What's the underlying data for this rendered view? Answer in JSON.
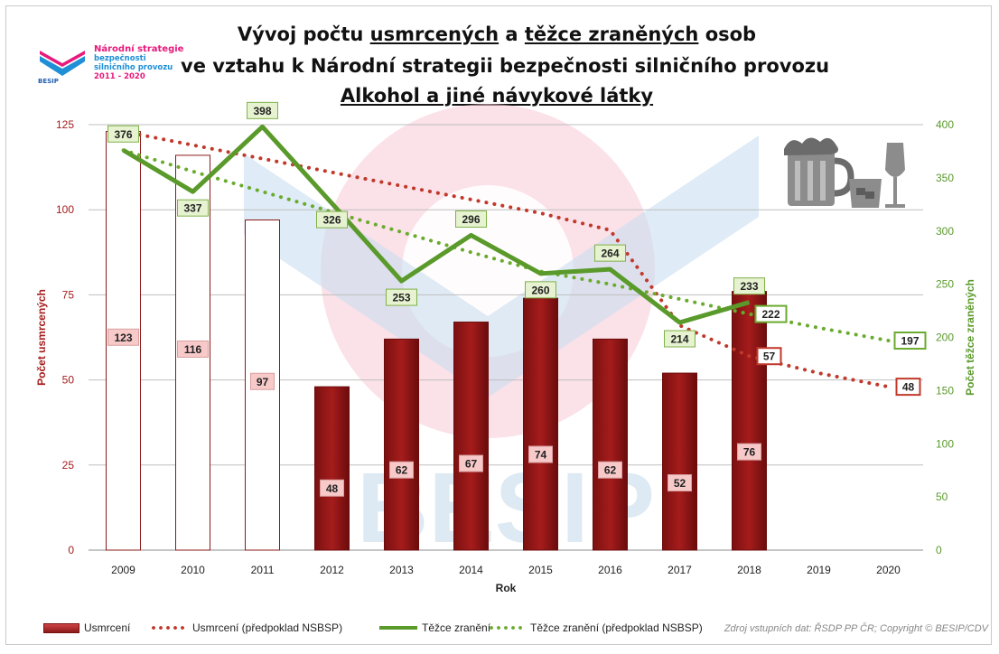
{
  "header": {
    "title_line1_a": "Vývoj počtu ",
    "title_line1_b": "usmrcených",
    "title_line1_c": " a ",
    "title_line1_d": "těžce zraněných",
    "title_line1_e": " osob",
    "title_line2": "ve vztahu k Národní strategii bezpečnosti silničního provozu",
    "title_line3": "Alkohol a jiné návykové látky"
  },
  "logo": {
    "line1": "Národní strategie",
    "line2": "bezpečnosti",
    "line3": "silničního provozu",
    "line4": "2011 - 2020",
    "brand": "BESIP"
  },
  "watermark": "BESIP",
  "legend": {
    "usmrceni": "Usmrcení",
    "usmrceni_pred": "Usmrcení (předpoklad NSBSP)",
    "tezce": "Těžce zranění",
    "tezce_pred": "Těžce zranění (předpoklad NSBSP)"
  },
  "source": "Zdroj vstupních dat: ŘSDP PP ČR; Copyright © BESIP/CDV",
  "colors": {
    "bar_fill": "#a51c1c",
    "bar_outline": "#8b1a1a",
    "killed_forecast": "#c0392b",
    "injured_line": "#5a9a2b",
    "injured_forecast": "#6aab2e",
    "label_box_red": "#f7c9c9",
    "label_box_green": "#e6f2d0"
  },
  "chart_data": {
    "type": "bar",
    "xlabel": "Rok",
    "ylabel": "Počet usmrcených",
    "y2label": "Počet těžce zraněných",
    "categories": [
      "2009",
      "2010",
      "2011",
      "2012",
      "2013",
      "2014",
      "2015",
      "2016",
      "2017",
      "2018",
      "2019",
      "2020"
    ],
    "ylim": [
      0,
      125
    ],
    "y_ticks": [
      0,
      25,
      50,
      75,
      100,
      125
    ],
    "y2lim": [
      0,
      400
    ],
    "y2_ticks": [
      0,
      50,
      100,
      150,
      200,
      250,
      300,
      350,
      400
    ],
    "series": [
      {
        "name": "Usmrcení",
        "type": "bar",
        "axis": "left",
        "values": [
          123,
          116,
          97,
          48,
          62,
          67,
          74,
          62,
          52,
          76,
          null,
          null
        ],
        "hollow_until_index": 2
      },
      {
        "name": "Usmrcení (předpoklad NSBSP)",
        "type": "dotted-line",
        "axis": "left",
        "values": [
          123,
          119,
          115,
          111,
          107,
          103,
          99,
          94,
          66,
          57,
          52,
          48
        ],
        "labeled": {
          "9": "57",
          "11": "48"
        }
      },
      {
        "name": "Těžce zranění",
        "type": "line",
        "axis": "right",
        "values": [
          376,
          337,
          398,
          326,
          253,
          296,
          260,
          264,
          214,
          233,
          null,
          null
        ]
      },
      {
        "name": "Těžce zranění (předpoklad NSBSP)",
        "type": "dotted-line",
        "axis": "right",
        "values": [
          376,
          356,
          337,
          318,
          299,
          280,
          262,
          250,
          236,
          222,
          209,
          197
        ],
        "labeled": {
          "9": "222",
          "11": "197"
        }
      }
    ],
    "grid": true
  }
}
